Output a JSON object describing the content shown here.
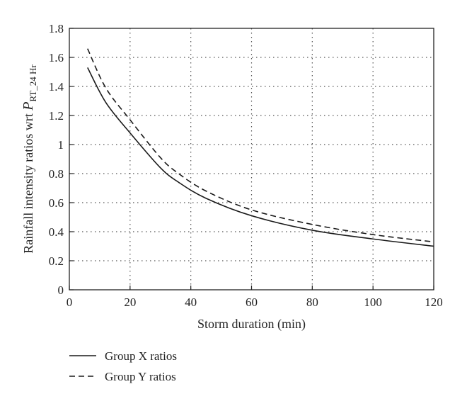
{
  "chart_data": {
    "type": "line",
    "xlabel": "Storm duration (min)",
    "ylabel": {
      "main": "Rainfall intensity ratios wrt ",
      "symbol": "P",
      "subscript": "RT_24 Hr"
    },
    "xlim": [
      0,
      120
    ],
    "ylim": [
      0,
      1.8
    ],
    "x_ticks": [
      "0",
      "20",
      "40",
      "60",
      "80",
      "100",
      "120"
    ],
    "y_ticks": [
      "0",
      "0.2",
      "0.4",
      "0.6",
      "0.8",
      "1",
      "1.2",
      "1.4",
      "1.6",
      "1.8"
    ],
    "grid": true,
    "legend_position": "bottom-left, below the chart",
    "series": [
      {
        "name": "Group X ratios",
        "style": "solid",
        "x": [
          6,
          12,
          20,
          30,
          36,
          45,
          60,
          80,
          100,
          120
        ],
        "y": [
          1.53,
          1.29,
          1.08,
          0.84,
          0.74,
          0.63,
          0.51,
          0.41,
          0.35,
          0.3
        ]
      },
      {
        "name": "Group Y ratios",
        "style": "dashed",
        "x": [
          6,
          12,
          20,
          30,
          36,
          45,
          60,
          80,
          100,
          120
        ],
        "y": [
          1.66,
          1.39,
          1.17,
          0.91,
          0.8,
          0.68,
          0.55,
          0.45,
          0.38,
          0.33
        ]
      }
    ]
  }
}
